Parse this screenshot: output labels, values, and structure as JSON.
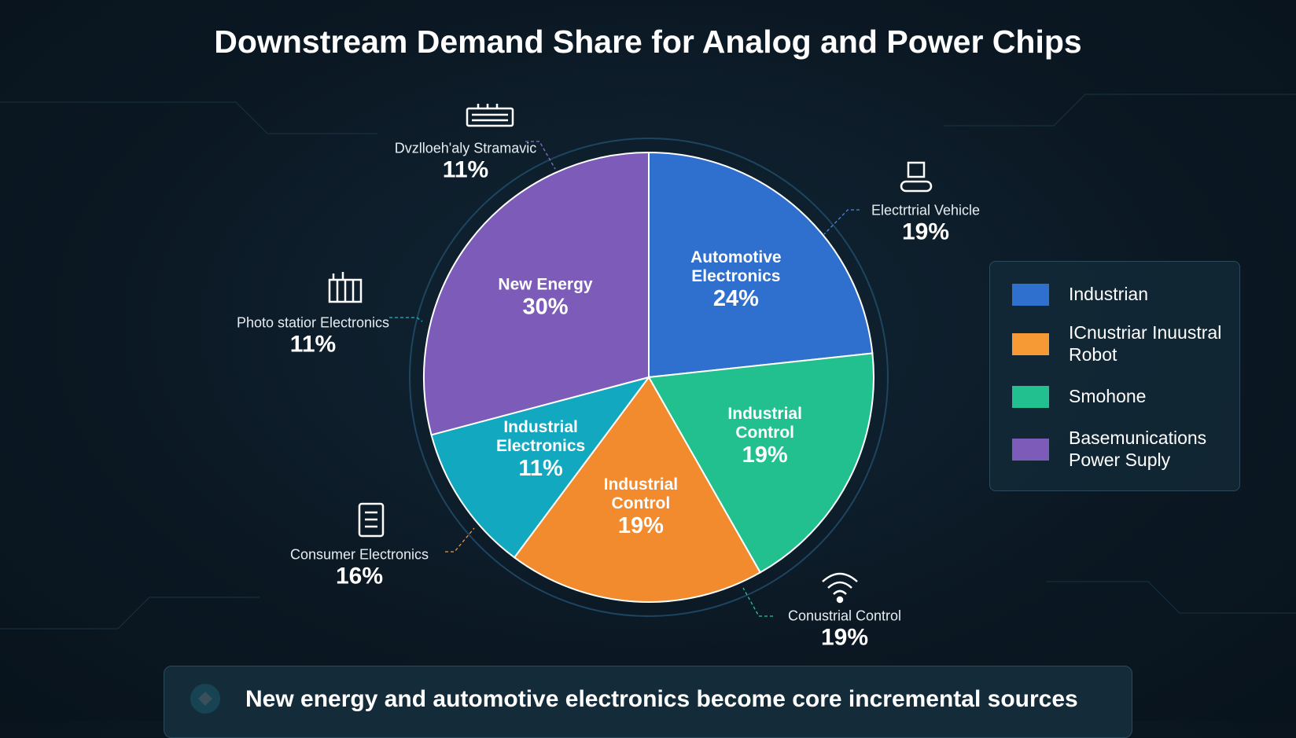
{
  "chart_data": {
    "type": "pie",
    "title": "Downstream Demand Share for Analog and Power Chips",
    "categories": [
      "Automotive Electronics",
      "Industrial Control",
      "Industrial Control",
      "Industrial Electronics",
      "New Energy"
    ],
    "values": [
      24,
      19,
      19,
      11,
      30
    ],
    "value_labels": [
      "24%",
      "19%",
      "19%",
      "11%",
      "30%"
    ],
    "colors": [
      "#2f6fce",
      "#22c08e",
      "#f28a2e",
      "#12a8c0",
      "#7c5cb8"
    ],
    "callouts": [
      {
        "label": "Dvzlloeh'aly Stramavic",
        "value": 11,
        "value_label": "11%"
      },
      {
        "label": "Electrtrial Vehicle",
        "value": 19,
        "value_label": "19%"
      },
      {
        "label": "Photo statior Electronics",
        "value": 11,
        "value_label": "11%"
      },
      {
        "label": "Consumer Electronics",
        "value": 16,
        "value_label": "16%"
      },
      {
        "label": "Conustrial Control",
        "value": 19,
        "value_label": "19%"
      }
    ],
    "legend": [
      {
        "name": "Industrian",
        "color": "#2f6fce"
      },
      {
        "name": "ICnustriar Inuustral Robot",
        "color": "#f59a35"
      },
      {
        "name": "Smohone",
        "color": "#22c08e"
      },
      {
        "name": "Basemunications Power Suply",
        "color": "#7c5cb8"
      }
    ]
  },
  "footer": "New energy and automotive electronics become core incremental sources"
}
